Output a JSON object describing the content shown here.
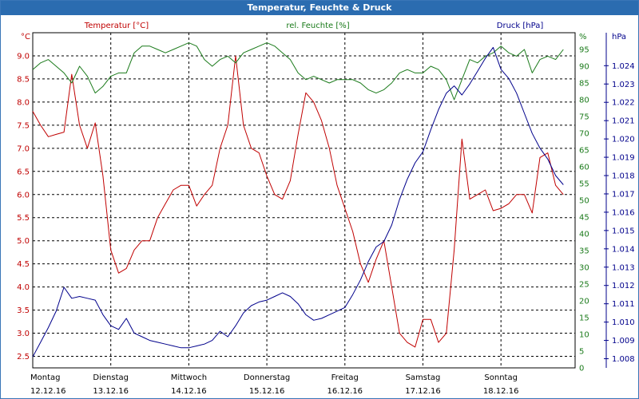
{
  "window": {
    "title": "Temperatur, Feuchte & Druck"
  },
  "chart_data": {
    "type": "line",
    "title": "Temperatur, Feuchte & Druck",
    "x": [
      0,
      0.1,
      0.2,
      0.3,
      0.4,
      0.5,
      0.6,
      0.7,
      0.8,
      0.9,
      1,
      1.1,
      1.2,
      1.3,
      1.4,
      1.5,
      1.6,
      1.7,
      1.8,
      1.9,
      2,
      2.1,
      2.2,
      2.3,
      2.4,
      2.5,
      2.6,
      2.7,
      2.8,
      2.9,
      3,
      3.1,
      3.2,
      3.3,
      3.4,
      3.5,
      3.6,
      3.7,
      3.8,
      3.9,
      4,
      4.1,
      4.2,
      4.3,
      4.4,
      4.5,
      4.6,
      4.7,
      4.8,
      4.9,
      5,
      5.1,
      5.2,
      5.3,
      5.4,
      5.5,
      5.6,
      5.7,
      5.8,
      5.9,
      6,
      6.1,
      6.2,
      6.3,
      6.4,
      6.5,
      6.6,
      6.7,
      6.8
    ],
    "xlim": [
      0,
      6.95
    ],
    "days": [
      {
        "name": "Montag",
        "date": "12.12.16"
      },
      {
        "name": "Dienstag",
        "date": "13.12.16"
      },
      {
        "name": "Mittwoch",
        "date": "14.12.16"
      },
      {
        "name": "Donnerstag",
        "date": "15.12.16"
      },
      {
        "name": "Freitag",
        "date": "16.12.16"
      },
      {
        "name": "Samstag",
        "date": "17.12.16"
      },
      {
        "name": "Sonntag",
        "date": "18.12.16"
      }
    ],
    "series": [
      {
        "name": "Temperatur [°C]",
        "axis": "left",
        "color": "#c00000",
        "values": [
          7.8,
          7.5,
          7.25,
          7.3,
          7.35,
          8.6,
          7.5,
          7.0,
          7.55,
          6.4,
          4.8,
          4.3,
          4.4,
          4.8,
          5.0,
          5.0,
          5.5,
          5.8,
          6.1,
          6.2,
          6.2,
          5.75,
          6.0,
          6.2,
          7.0,
          7.5,
          9.0,
          7.5,
          7.0,
          6.9,
          6.4,
          6.0,
          5.9,
          6.3,
          7.3,
          8.2,
          8.0,
          7.6,
          7.0,
          6.2,
          5.7,
          5.2,
          4.5,
          4.1,
          4.6,
          5.0,
          4.0,
          3.0,
          2.8,
          2.7,
          3.3,
          3.3,
          2.8,
          3.0,
          4.8,
          7.2,
          5.9,
          6.0,
          6.1,
          5.65,
          5.7,
          5.8,
          6.0,
          6.0,
          5.6,
          6.8,
          6.9,
          6.2,
          6.0
        ]
      },
      {
        "name": "rel. Feuchte [%]",
        "axis": "humidity",
        "color": "#1a7a1a",
        "values": [
          89,
          91,
          92,
          90,
          88,
          85,
          90,
          87,
          82,
          84,
          87,
          88,
          88,
          94,
          96,
          96,
          95,
          94,
          95,
          96,
          97,
          96,
          92,
          90,
          92,
          93,
          91,
          94,
          95,
          96,
          97,
          96,
          94,
          92,
          88,
          86,
          87,
          86,
          85,
          86,
          86,
          86,
          85,
          83,
          82,
          83,
          85,
          88,
          89,
          88,
          88,
          90,
          89,
          86,
          80,
          86,
          92,
          91,
          93,
          94,
          96,
          94,
          93,
          95,
          88,
          92,
          93,
          92,
          95
        ]
      },
      {
        "name": "Druck [hPa]",
        "axis": "right",
        "color": "#00008b",
        "values": [
          1.0081,
          1.0089,
          1.0097,
          1.0106,
          1.0119,
          1.0113,
          1.0114,
          1.0113,
          1.0112,
          1.0104,
          1.0098,
          1.0096,
          1.0102,
          1.0094,
          1.0092,
          1.009,
          1.0089,
          1.0088,
          1.0087,
          1.0086,
          1.0086,
          1.0087,
          1.0088,
          1.009,
          1.0095,
          1.0092,
          1.0098,
          1.0105,
          1.0109,
          1.0111,
          1.0112,
          1.0114,
          1.0116,
          1.0114,
          1.011,
          1.0104,
          1.0101,
          1.0102,
          1.0104,
          1.0106,
          1.0108,
          1.0115,
          1.0123,
          1.0133,
          1.0141,
          1.0144,
          1.0153,
          1.0167,
          1.0178,
          1.0187,
          1.0193,
          1.0205,
          1.0216,
          1.0225,
          1.0229,
          1.0224,
          1.023,
          1.0237,
          1.0244,
          1.025,
          1.0238,
          1.0233,
          1.0225,
          1.0214,
          1.0203,
          1.0195,
          1.0189,
          1.018,
          1.0175
        ]
      }
    ],
    "axes": {
      "left": {
        "label": "°C",
        "series_label": "Temperatur [°C]",
        "ylim": [
          2.25,
          9.5
        ],
        "ticks": [
          "2.5",
          "3.0",
          "3.5",
          "4.0",
          "4.5",
          "5.0",
          "5.5",
          "6.0",
          "6.5",
          "7.0",
          "7.5",
          "8.0",
          "8.5",
          "9.0"
        ]
      },
      "humidity": {
        "label": "%",
        "series_label": "rel. Feuchte [%]",
        "ylim": [
          0,
          100
        ],
        "ticks": [
          "0",
          "5",
          "10",
          "15",
          "20",
          "25",
          "30",
          "35",
          "40",
          "45",
          "50",
          "55",
          "60",
          "65",
          "70",
          "75",
          "80",
          "85",
          "90",
          "95"
        ]
      },
      "right": {
        "label": "hPa",
        "series_label": "Druck [hPa]",
        "ylim": [
          1.0075,
          1.0258
        ],
        "ticks": [
          "1.008",
          "1.009",
          "1.010",
          "1.011",
          "1.012",
          "1.013",
          "1.014",
          "1.015",
          "1.016",
          "1.017",
          "1.018",
          "1.019",
          "1.020",
          "1.021",
          "1.022",
          "1.023",
          "1.024"
        ]
      }
    },
    "grid": true,
    "colors": {
      "temperature": "#c00000",
      "humidity": "#1a7a1a",
      "pressure": "#00008b",
      "titlebar": "#2b6cb0"
    }
  }
}
